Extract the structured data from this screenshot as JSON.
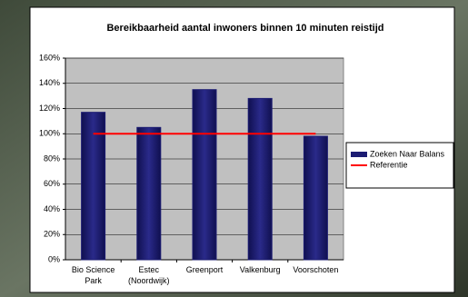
{
  "chart_data": {
    "type": "bar",
    "title": "Bereikbaarheid aantal inwoners binnen 10 minuten reistijd",
    "categories": [
      "Bio Science Park",
      "Estec (Noordwijk)",
      "Greenport",
      "Valkenburg",
      "Voorschoten"
    ],
    "series": [
      {
        "name": "Zoeken Naar Balans",
        "color": "#1c1c72",
        "type": "bar",
        "values": [
          117,
          105,
          135,
          128,
          98
        ]
      },
      {
        "name": "Referentie",
        "color": "#ff0000",
        "type": "line",
        "values": [
          100,
          100,
          100,
          100,
          100
        ]
      }
    ],
    "ylim": [
      0,
      160
    ],
    "yticks": [
      {
        "value": 0,
        "label": "0%"
      },
      {
        "value": 20,
        "label": "20%"
      },
      {
        "value": 40,
        "label": "40%"
      },
      {
        "value": 60,
        "label": "60%"
      },
      {
        "value": 80,
        "label": "80%"
      },
      {
        "value": 100,
        "label": "100%"
      },
      {
        "value": 120,
        "label": "120%"
      },
      {
        "value": 140,
        "label": "140%"
      },
      {
        "value": 160,
        "label": "160%"
      }
    ],
    "grid": true,
    "legend": "right"
  }
}
